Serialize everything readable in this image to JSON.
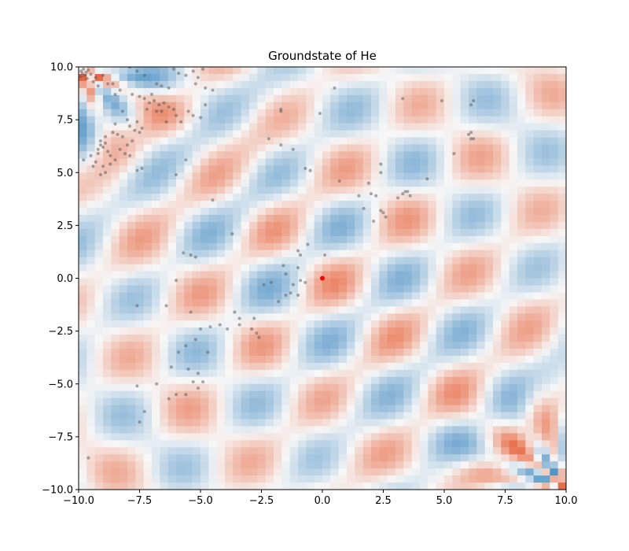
{
  "chart_data": {
    "type": "heatmap",
    "title": "Groundstate of He",
    "xlabel": "",
    "ylabel": "",
    "xlim": [
      -10,
      10
    ],
    "ylim": [
      -10,
      10
    ],
    "xticks": [
      -10,
      -7.5,
      -5,
      -2.5,
      0,
      2.5,
      5,
      7.5,
      10
    ],
    "yticks": [
      -10,
      -7.5,
      -5,
      -2.5,
      0,
      2.5,
      5,
      7.5,
      10
    ],
    "xtick_labels": [
      "−10.0",
      "−7.5",
      "−5.0",
      "−2.5",
      "0.0",
      "2.5",
      "5.0",
      "7.5",
      "10.0"
    ],
    "ytick_labels": [
      "−10.0",
      "−7.5",
      "−5.0",
      "−2.5",
      "0.0",
      "2.5",
      "5.0",
      "7.5",
      "10.0"
    ],
    "grid": false,
    "colormap": "RdBu",
    "colors": {
      "positive": "#e7663f",
      "negative": "#4a8fc4",
      "neutral": "#f7f7f7",
      "samples": "#555555",
      "nucleus": "#ff0000"
    },
    "nucleus": {
      "x": 0,
      "y": 0
    },
    "samples": [
      [
        -9.9,
        9.8
      ],
      [
        -9.85,
        9.7
      ],
      [
        -9.8,
        9.9
      ],
      [
        -9.75,
        9.6
      ],
      [
        -9.7,
        9.75
      ],
      [
        -9.9,
        9.55
      ],
      [
        -9.6,
        9.85
      ],
      [
        -9.65,
        9.45
      ],
      [
        -9.5,
        9.65
      ],
      [
        -9.4,
        9.3
      ],
      [
        -9.3,
        9.5
      ],
      [
        -9.2,
        9.1
      ],
      [
        -9.0,
        9.6
      ],
      [
        -8.8,
        9.2
      ],
      [
        -8.6,
        9.2
      ],
      [
        -8.5,
        8.7
      ],
      [
        -8.3,
        8.9
      ],
      [
        -7.9,
        10.0
      ],
      [
        -7.6,
        9.8
      ],
      [
        -7.3,
        9.6
      ],
      [
        -6.8,
        9.2
      ],
      [
        -6.6,
        9.1
      ],
      [
        -6.3,
        9.0
      ],
      [
        -6.1,
        9.9
      ],
      [
        -5.9,
        9.7
      ],
      [
        -5.6,
        9.6
      ],
      [
        -5.3,
        9.8
      ],
      [
        -5.1,
        9.5
      ],
      [
        -4.9,
        9.9
      ],
      [
        -5.2,
        9.2
      ],
      [
        -4.8,
        9.0
      ],
      [
        -4.5,
        8.9
      ],
      [
        -7.8,
        8.7
      ],
      [
        -7.5,
        8.6
      ],
      [
        -7.3,
        8.5
      ],
      [
        -7.1,
        8.3
      ],
      [
        -6.9,
        8.4
      ],
      [
        -6.7,
        8.2
      ],
      [
        -6.6,
        7.9
      ],
      [
        -6.5,
        8.3
      ],
      [
        -6.3,
        8.1
      ],
      [
        -6.1,
        8.0
      ],
      [
        -6.0,
        7.7
      ],
      [
        -5.8,
        7.4
      ],
      [
        -5.5,
        7.9
      ],
      [
        -5.3,
        7.7
      ],
      [
        -5.0,
        7.6
      ],
      [
        -4.8,
        8.2
      ],
      [
        -7.2,
        8.0
      ],
      [
        -7.0,
        8.7
      ],
      [
        -6.8,
        7.9
      ],
      [
        -6.4,
        7.4
      ],
      [
        -8.2,
        7.9
      ],
      [
        -8.0,
        7.5
      ],
      [
        -7.9,
        7.2
      ],
      [
        -7.7,
        7.0
      ],
      [
        -7.6,
        7.4
      ],
      [
        -7.5,
        6.9
      ],
      [
        -7.4,
        7.1
      ],
      [
        -8.5,
        7.3
      ],
      [
        -8.4,
        6.8
      ],
      [
        -8.6,
        6.9
      ],
      [
        -8.2,
        6.7
      ],
      [
        -8.0,
        6.3
      ],
      [
        -7.8,
        6.5
      ],
      [
        -8.3,
        6.1
      ],
      [
        -8.1,
        5.9
      ],
      [
        -8.9,
        6.7
      ],
      [
        -9.1,
        6.5
      ],
      [
        -9.0,
        6.2
      ],
      [
        -8.8,
        6.0
      ],
      [
        -8.7,
        5.8
      ],
      [
        -9.2,
        5.9
      ],
      [
        -9.3,
        5.5
      ],
      [
        -9.0,
        5.3
      ],
      [
        -8.9,
        5.0
      ],
      [
        -9.1,
        4.9
      ],
      [
        -8.7,
        5.4
      ],
      [
        -9.5,
        5.8
      ],
      [
        -9.4,
        5.3
      ],
      [
        -8.5,
        5.6
      ],
      [
        -9.1,
        6.3
      ],
      [
        -8.9,
        6.4
      ],
      [
        -9.2,
        6.1
      ],
      [
        -7.9,
        5.8
      ],
      [
        -7.6,
        5.1
      ],
      [
        -7.4,
        5.2
      ],
      [
        -9.8,
        5.6
      ],
      [
        -6.0,
        4.9
      ],
      [
        -5.6,
        5.6
      ],
      [
        -4.5,
        3.7
      ],
      [
        -3.7,
        2.1
      ],
      [
        -5.7,
        1.2
      ],
      [
        -5.4,
        1.1
      ],
      [
        -5.2,
        1.0
      ],
      [
        -6.0,
        -0.1
      ],
      [
        -7.6,
        -1.3
      ],
      [
        -6.4,
        -1.3
      ],
      [
        -5.4,
        -1.6
      ],
      [
        -5.0,
        -2.4
      ],
      [
        -4.6,
        -2.3
      ],
      [
        -4.2,
        -2.2
      ],
      [
        -3.6,
        -1.6
      ],
      [
        -3.4,
        -1.9
      ],
      [
        -2.9,
        -2.4
      ],
      [
        -2.7,
        -2.6
      ],
      [
        -2.8,
        -1.9
      ],
      [
        -2.4,
        -0.3
      ],
      [
        -2.1,
        -0.2
      ],
      [
        -1.8,
        -1.1
      ],
      [
        -1.5,
        -0.8
      ],
      [
        -1.3,
        -0.7
      ],
      [
        -1.0,
        -0.8
      ],
      [
        -0.9,
        -0.1
      ],
      [
        -0.7,
        -0.2
      ],
      [
        -1.2,
        -0.3
      ],
      [
        -1.0,
        0.5
      ],
      [
        -1.0,
        1.3
      ],
      [
        -0.9,
        1.1
      ],
      [
        -0.6,
        1.6
      ],
      [
        -1.5,
        0.2
      ],
      [
        -1.6,
        0.6
      ],
      [
        0.1,
        1.1
      ],
      [
        -5.2,
        -2.9
      ],
      [
        -4.7,
        -3.5
      ],
      [
        -5.6,
        -3.2
      ],
      [
        -5.9,
        -3.5
      ],
      [
        -6.2,
        -4.2
      ],
      [
        -5.5,
        -4.3
      ],
      [
        -5.1,
        -4.5
      ],
      [
        -4.9,
        -4.9
      ],
      [
        -5.3,
        -4.9
      ],
      [
        -5.1,
        -5.2
      ],
      [
        -5.6,
        -5.5
      ],
      [
        -6.0,
        -5.5
      ],
      [
        -6.3,
        -5.7
      ],
      [
        -6.8,
        -5.0
      ],
      [
        -7.6,
        -5.1
      ],
      [
        -7.3,
        -6.3
      ],
      [
        -7.5,
        -6.8
      ],
      [
        -9.6,
        -8.5
      ],
      [
        -3.4,
        -2.2
      ],
      [
        -2.6,
        -2.8
      ],
      [
        -3.9,
        -2.4
      ],
      [
        0.5,
        9.0
      ],
      [
        -1.7,
        8.0
      ],
      [
        -1.7,
        7.9
      ],
      [
        -0.1,
        7.8
      ],
      [
        -2.2,
        6.6
      ],
      [
        -1.7,
        6.3
      ],
      [
        -1.2,
        6.1
      ],
      [
        -0.7,
        5.2
      ],
      [
        -0.5,
        5.1
      ],
      [
        0.7,
        4.6
      ],
      [
        1.5,
        3.9
      ],
      [
        1.7,
        3.3
      ],
      [
        1.9,
        4.5
      ],
      [
        2.0,
        4.0
      ],
      [
        2.2,
        3.9
      ],
      [
        2.1,
        2.7
      ],
      [
        2.4,
        3.2
      ],
      [
        2.5,
        3.1
      ],
      [
        2.6,
        2.9
      ],
      [
        2.4,
        5.0
      ],
      [
        2.4,
        5.4
      ],
      [
        3.1,
        3.8
      ],
      [
        3.3,
        4.0
      ],
      [
        3.4,
        4.1
      ],
      [
        3.5,
        4.1
      ],
      [
        3.6,
        3.9
      ],
      [
        4.3,
        4.7
      ],
      [
        3.3,
        8.5
      ],
      [
        4.9,
        8.4
      ],
      [
        6.1,
        8.2
      ],
      [
        6.2,
        8.4
      ],
      [
        5.4,
        5.9
      ],
      [
        6.0,
        6.8
      ],
      [
        6.1,
        6.6
      ],
      [
        6.1,
        6.9
      ],
      [
        6.2,
        6.6
      ]
    ]
  }
}
